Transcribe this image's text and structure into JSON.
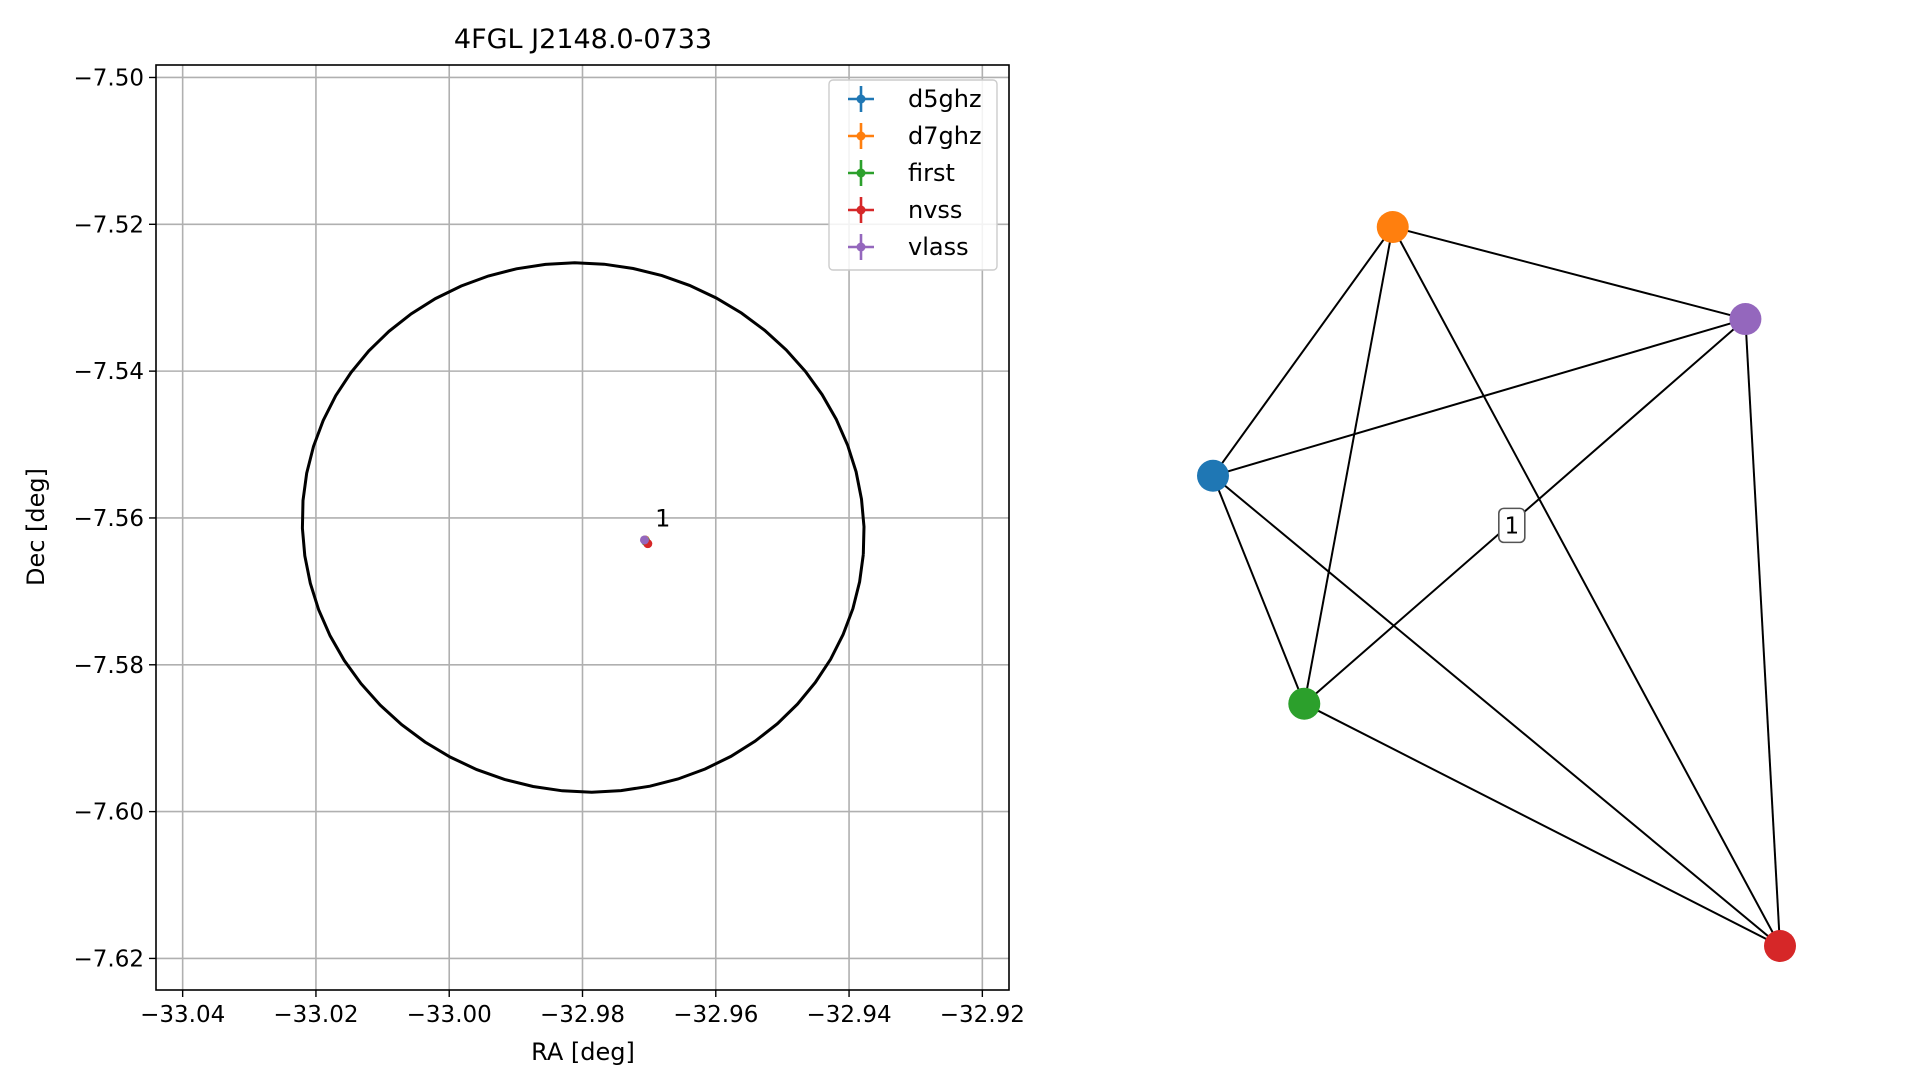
{
  "chart_data": [
    {
      "type": "scatter",
      "title": "4FGL J2148.0-0733",
      "xlabel": "RA [deg]",
      "ylabel": "Dec [deg]",
      "xlim": [
        -33.044,
        -32.916
      ],
      "ylim": [
        -7.6243,
        -7.4983
      ],
      "grid": true,
      "x_ticks": [
        -33.04,
        -33.02,
        -33.0,
        -32.98,
        -32.96,
        -32.94,
        -32.92
      ],
      "x_tick_labels": [
        "−33.04",
        "−33.02",
        "−33.00",
        "−32.98",
        "−32.96",
        "−32.94",
        "−32.92"
      ],
      "y_ticks": [
        -7.62,
        -7.6,
        -7.58,
        -7.56,
        -7.54,
        -7.52,
        -7.5
      ],
      "y_tick_labels": [
        "−7.62",
        "−7.60",
        "−7.58",
        "−7.56",
        "−7.54",
        "−7.52",
        "−7.50"
      ],
      "ellipse": {
        "center": [
          -32.9799,
          -7.5613
        ],
        "semi_major": 0.0422,
        "semi_minor": 0.036,
        "tilt_deg": -5,
        "color": "#000000"
      },
      "legend_position": "top-right",
      "series": [
        {
          "name": "d5ghz",
          "color": "#1f77b4",
          "x": [
            -32.9706
          ],
          "y": [
            -7.563
          ]
        },
        {
          "name": "d7ghz",
          "color": "#ff7f0e",
          "x": [
            -32.9706
          ],
          "y": [
            -7.563
          ]
        },
        {
          "name": "first",
          "color": "#2ca02c",
          "x": [
            -32.9705
          ],
          "y": [
            -7.5632
          ]
        },
        {
          "name": "nvss",
          "color": "#d62728",
          "x": [
            -32.9702
          ],
          "y": [
            -7.5635
          ]
        },
        {
          "name": "vlass",
          "color": "#9467bd",
          "x": [
            -32.9707
          ],
          "y": [
            -7.563
          ]
        }
      ],
      "annotation": {
        "text": "1",
        "x": -32.97,
        "y": -7.562
      }
    },
    {
      "type": "network",
      "nodes": [
        {
          "id": "d5ghz",
          "color": "#1f77b4",
          "x": 0.0,
          "y": 0.654
        },
        {
          "id": "d7ghz",
          "color": "#ff7f0e",
          "x": 0.317,
          "y": 1.0
        },
        {
          "id": "vlass",
          "color": "#9467bd",
          "x": 0.939,
          "y": 0.872
        },
        {
          "id": "first",
          "color": "#2ca02c",
          "x": 0.161,
          "y": 0.337
        },
        {
          "id": "nvss",
          "color": "#d62728",
          "x": 1.0,
          "y": 0.0
        }
      ],
      "edges": [
        [
          "d5ghz",
          "d7ghz"
        ],
        [
          "d5ghz",
          "vlass"
        ],
        [
          "d5ghz",
          "first"
        ],
        [
          "d5ghz",
          "nvss"
        ],
        [
          "d7ghz",
          "vlass"
        ],
        [
          "d7ghz",
          "first"
        ],
        [
          "d7ghz",
          "nvss"
        ],
        [
          "vlass",
          "first"
        ],
        [
          "vlass",
          "nvss"
        ],
        [
          "first",
          "nvss"
        ]
      ],
      "label": {
        "text": "1",
        "x": 0.527,
        "y": 0.585
      }
    }
  ]
}
